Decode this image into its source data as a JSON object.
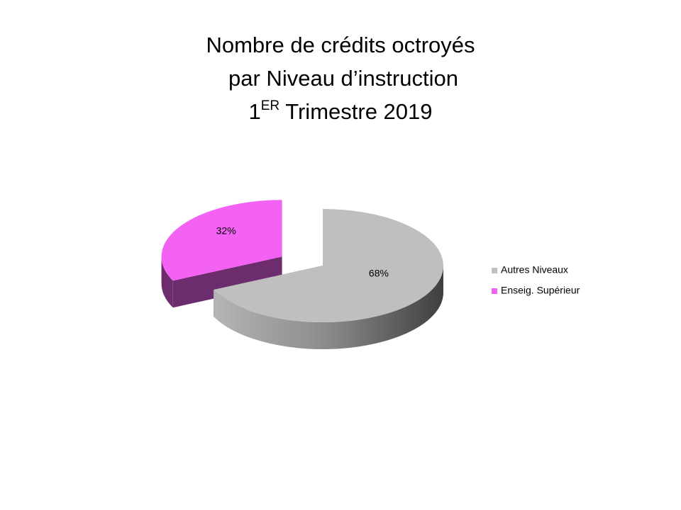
{
  "chart_data": {
    "type": "pie3d",
    "title": [
      "Nombre de crédits octroyés",
      "par Niveau d’instruction",
      [
        "1",
        "ER",
        " Trimestre 2019"
      ]
    ],
    "categories": [
      "Autres Niveaux",
      "Enseig. Supérieur"
    ],
    "values": [
      68,
      32
    ],
    "value_labels": [
      "68%",
      "32%"
    ],
    "colors": [
      "#bfbfbf",
      "#f462f4"
    ],
    "legend": "right"
  }
}
